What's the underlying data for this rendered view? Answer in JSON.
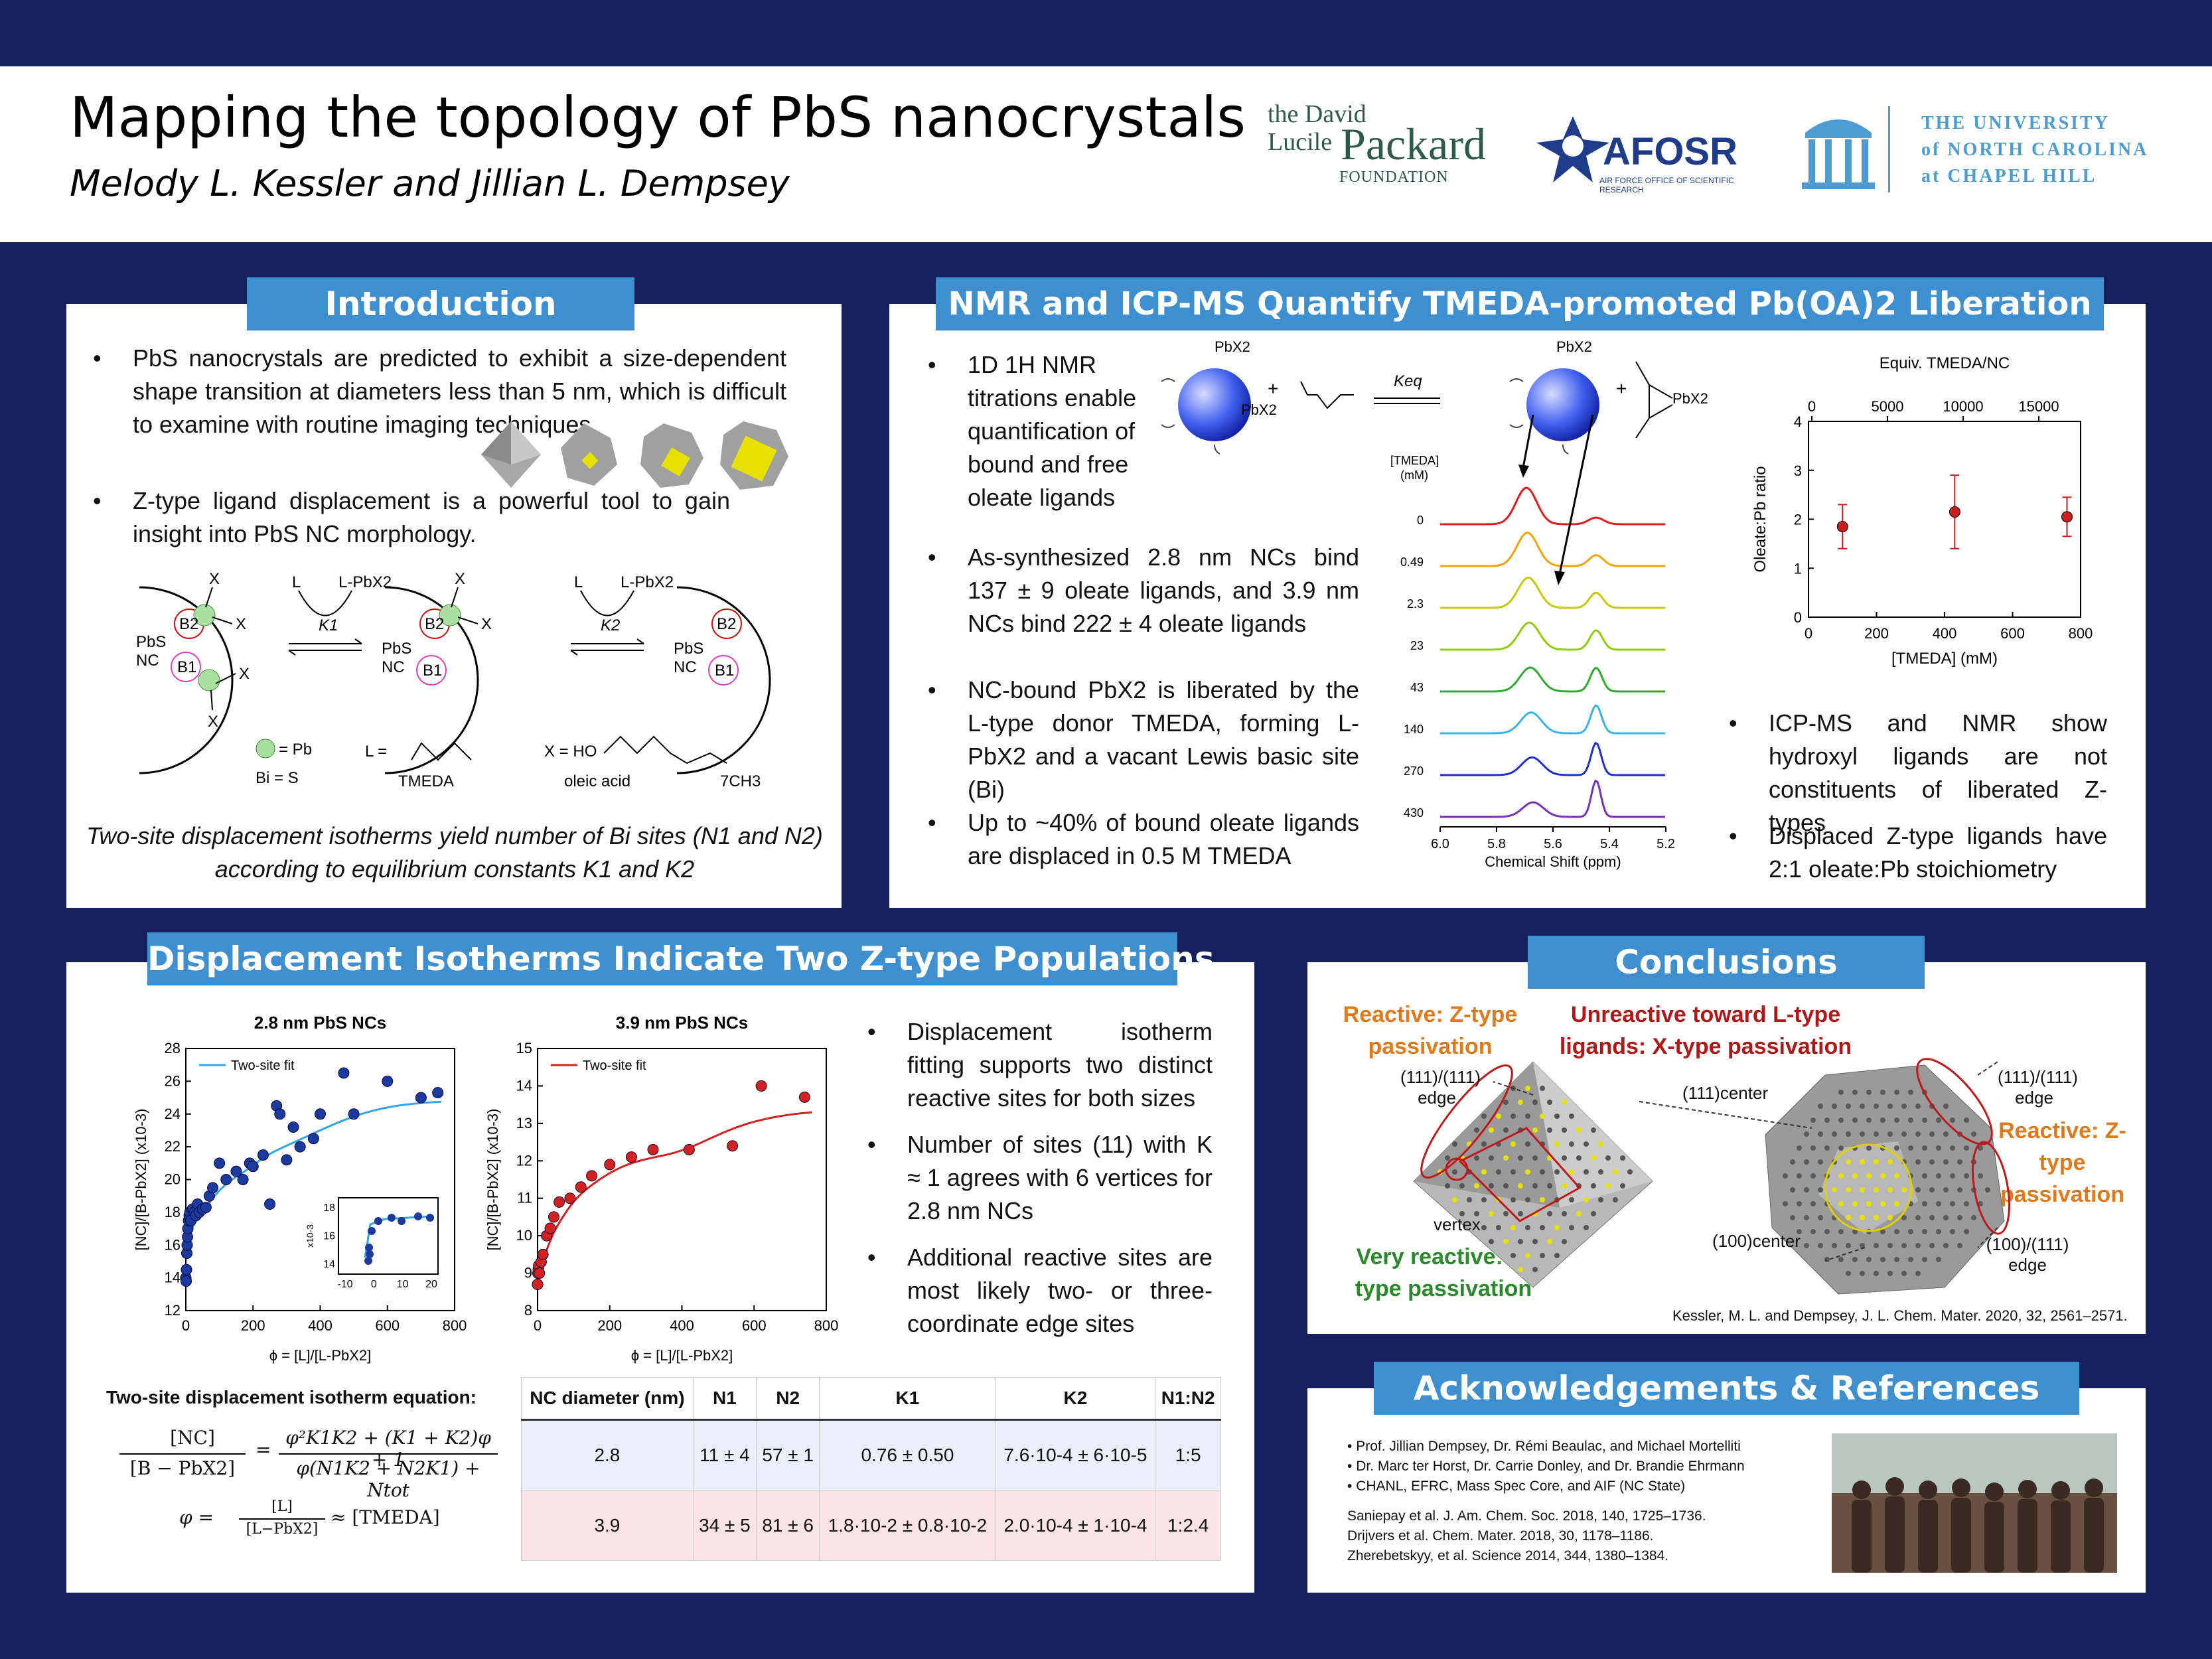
{
  "header": {
    "title": "Mapping the topology of PbS nanocrystals",
    "authors": "Melody L. Kessler and Jillian L. Dempsey",
    "logos": {
      "packard_1": "the David",
      "packard_2": "Lucile",
      "packard_3": "Packard",
      "packard_4": "FOUNDATION",
      "afosr": "AFOSR",
      "afosr_sub": "AIR FORCE OFFICE OF SCIENTIFIC RESEARCH",
      "unc_1": "THE UNIVERSITY",
      "unc_2": "of NORTH CAROLINA",
      "unc_3": "at CHAPEL HILL"
    }
  },
  "intro": {
    "title": "Introduction",
    "bullet1": "PbS nanocrystals are predicted to exhibit a size-dependent shape transition at diameters less than 5 nm, which is difficult to examine with routine imaging techniques.",
    "bullet2": "Z-type ligand displacement is a powerful tool to gain insight into PbS NC morphology.",
    "scheme": {
      "x": "X",
      "l": "L",
      "lpbx2": "L-PbX2",
      "k1": "K1",
      "k2": "K2",
      "b1": "B1",
      "b2": "B2",
      "pbs": "PbS",
      "nc": "NC",
      "legend_pb": "= Pb",
      "legend_bi": "Bi = S",
      "l_eq": "L =",
      "tmeda": "TMEDA",
      "x_eq": "X = HO",
      "oleic": "oleic acid",
      "ch3": "7CH3"
    },
    "caption": "Two-site displacement isotherms yield number of Bi sites (N1 and N2) according to equilibrium constants K1 and K2"
  },
  "nmr": {
    "title": "NMR and ICP-MS Quantify TMEDA-promoted Pb(OA)2 Liberation",
    "bullet1": "1D 1H NMR titrations enable quantification of bound and free oleate ligands",
    "bullet2": "As-synthesized 2.8 nm NCs bind 137 ± 9 oleate ligands, and 3.9 nm NCs bind 222 ± 4 oleate ligands",
    "bullet3": "NC-bound PbX2 is liberated by the L-type donor TMEDA, forming L-PbX2 and a vacant Lewis basic site (Bi)",
    "bullet4": "Up to ~40% of bound oleate ligands are displaced in 0.5 M TMEDA",
    "bullet5": "ICP-MS and NMR show hydroxyl ligands are not constituents of liberated Z-types",
    "bullet6": "Displaced Z-type ligands have 2:1 oleate:Pb stoichiometry",
    "scheme": {
      "pbx2": "PbX2",
      "keq": "Keq",
      "plus": "+"
    },
    "spectra": {
      "header1": "[TMEDA]",
      "header2": "(mM)",
      "concentrations": [
        "0",
        "0.49",
        "2.3",
        "23",
        "43",
        "140",
        "270",
        "430"
      ],
      "colors": [
        "#e31a1c",
        "#f5a300",
        "#c8c800",
        "#8fcc00",
        "#2eaa2e",
        "#37b3e6",
        "#1f2fd0",
        "#7a2fb8"
      ],
      "x_ticks": [
        "6.0",
        "5.8",
        "5.6",
        "5.4",
        "5.2"
      ],
      "xlabel": "Chemical Shift (ppm)"
    },
    "chart_data": {
      "type": "scatter",
      "x": [
        100,
        430,
        760
      ],
      "y": [
        1.85,
        2.15,
        2.05
      ],
      "y_err": [
        0.45,
        0.75,
        0.4
      ],
      "xlabel": "[TMEDA] (mM)",
      "ylabel": "Oleate:Pb ratio",
      "top_xlabel": "Equiv. TMEDA/NC",
      "xlim": [
        0,
        800
      ],
      "ylim": [
        0,
        4
      ],
      "x_ticks": [
        "0",
        "200",
        "400",
        "600",
        "800"
      ],
      "y_ticks": [
        "0",
        "1",
        "2",
        "3",
        "4"
      ],
      "top_ticks": [
        "0",
        "5000",
        "10000",
        "15000"
      ],
      "color": "#c81e1e"
    }
  },
  "isotherms": {
    "title": "Displacement Isotherms Indicate Two Z-type Populations",
    "chart_data": [
      {
        "type": "scatter",
        "title": "2.8 nm PbS NCs",
        "legend": "Two-site fit",
        "xlabel": "ϕ = [L]/[L-PbX2]",
        "ylabel": "[NC]/[B-PbX2] (x10-3)",
        "xlim": [
          0,
          800
        ],
        "ylim": [
          12,
          28
        ],
        "x_ticks": [
          "0",
          "200",
          "400",
          "600",
          "800"
        ],
        "y_ticks": [
          "12",
          "14",
          "16",
          "18",
          "20",
          "22",
          "24",
          "26",
          "28"
        ],
        "x": [
          0,
          1,
          2,
          3,
          4,
          5,
          6,
          8,
          10,
          12,
          15,
          20,
          25,
          30,
          35,
          40,
          50,
          60,
          70,
          80,
          100,
          120,
          150,
          170,
          190,
          200,
          230,
          250,
          270,
          280,
          300,
          320,
          340,
          380,
          400,
          470,
          500,
          600,
          700,
          750
        ],
        "y": [
          14.0,
          13.8,
          14.5,
          15.5,
          16.0,
          16.5,
          17.0,
          17.5,
          17.8,
          18.0,
          17.5,
          18.2,
          18.0,
          17.8,
          18.5,
          18.0,
          18.2,
          18.3,
          19.0,
          19.5,
          21.0,
          20.0,
          20.5,
          20.0,
          21.0,
          20.8,
          21.5,
          18.5,
          24.5,
          24.0,
          21.2,
          23.2,
          22.0,
          22.5,
          24.0,
          26.5,
          24.0,
          26.0,
          25.0,
          25.3
        ],
        "fit_color": "#33a6e8",
        "point_color": "#1a3aa0",
        "inset": {
          "ylabel": "x10-3",
          "x_ticks": [
            "-10",
            "0",
            "10",
            "20"
          ],
          "y_ticks": [
            "14",
            "16",
            "18"
          ]
        }
      },
      {
        "type": "scatter",
        "title": "3.9 nm PbS NCs",
        "legend": "Two-site fit",
        "xlabel": "ϕ = [L]/[L-PbX2]",
        "ylabel": "[NC]/[B-PbX2] (x10-3)",
        "xlim": [
          0,
          800
        ],
        "ylim": [
          8,
          15
        ],
        "x_ticks": [
          "0",
          "200",
          "400",
          "600",
          "800"
        ],
        "y_ticks": [
          "8",
          "9",
          "10",
          "11",
          "12",
          "13",
          "14",
          "15"
        ],
        "x": [
          0,
          1,
          2,
          3,
          5,
          10,
          15,
          25,
          35,
          45,
          60,
          90,
          120,
          150,
          200,
          260,
          320,
          420,
          540,
          620,
          740
        ],
        "y": [
          8.7,
          9.0,
          9.1,
          9.2,
          9.0,
          9.3,
          9.5,
          10.0,
          10.2,
          10.5,
          10.9,
          11.0,
          11.3,
          11.6,
          11.9,
          12.1,
          12.3,
          12.3,
          12.4,
          14.0,
          13.7
        ],
        "fit_color": "#d42020",
        "point_color": "#d42020"
      }
    ],
    "bullet1": "Displacement isotherm fitting supports two distinct reactive sites for both sizes",
    "bullet2": "Number of sites (11) with K ≈ 1 agrees with 6 vertices for 2.8 nm NCs",
    "bullet3": "Additional reactive sites are most likely two- or three-coordinate edge sites",
    "equation_title": "Two-site displacement isotherm equation:",
    "eq_lhs_num": "[NC]",
    "eq_lhs_den": "[B − PbX2]",
    "eq_rhs_num": "φ²K1K2 + (K1 + K2)φ + 1",
    "eq_rhs_den": "φ(N1K2 + N2K1) + Ntot",
    "eq2_lhs": "φ =",
    "eq2_num": "[L]",
    "eq2_den": "[L−PbX2]",
    "eq2_rhs": "≈ [TMEDA]",
    "table": {
      "headers": [
        "NC diameter (nm)",
        "N1",
        "N2",
        "K1",
        "K2",
        "N1:N2"
      ],
      "rows": [
        [
          "2.8",
          "11 ± 4",
          "57 ± 1",
          "0.76 ± 0.50",
          "7.6·10-4 ± 6·10-5",
          "1:5"
        ],
        [
          "3.9",
          "34 ± 5",
          "81 ± 6",
          "1.8·10-2 ± 0.8·10-2",
          "2.0·10-4 ± 1·10-4",
          "1:2.4"
        ]
      ]
    }
  },
  "conclusions": {
    "title": "Conclusions",
    "reactive_z": "Reactive: Z-type passivation",
    "unreactive": "Unreactive toward L-type ligands: X-type passivation",
    "very_reactive": "Very reactive: Z-type passivation",
    "reactive_z2": "Reactive: Z-type passivation",
    "edge111": "(111)/(111) edge",
    "vertex": "vertex",
    "center111": "(111)center",
    "edge111b": "(111)/(111) edge",
    "center100": "(100)center",
    "edge100": "(100)/(111) edge",
    "reference": "Kessler, M. L. and Dempsey, J. L. Chem. Mater. 2020, 32, 2561–2571."
  },
  "ack": {
    "title": "Acknowledgements & References",
    "items": [
      "Prof. Jillian Dempsey, Dr. Rémi Beaulac, and Michael Mortelliti",
      "Dr. Marc ter Horst, Dr. Carrie Donley, and Dr. Brandie Ehrmann",
      "CHANL, EFRC, Mass Spec Core, and AIF (NC State)"
    ],
    "refs": [
      "Saniepay et al. J. Am. Chem. Soc. 2018, 140, 1725–1736.",
      "Drijvers et al. Chem. Mater. 2018, 30, 1178–1186.",
      "Zherebetskyy, et al. Science 2014, 344, 1380–1384."
    ]
  }
}
